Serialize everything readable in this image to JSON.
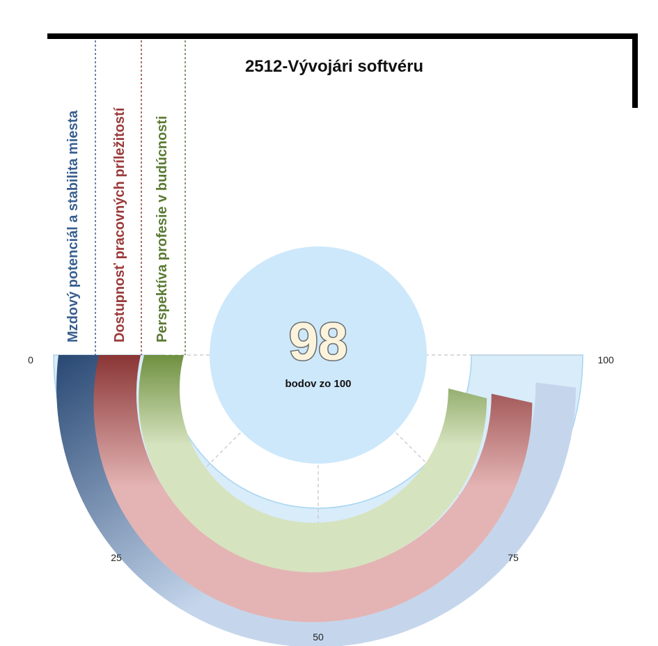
{
  "chart_data": {
    "type": "radial-bar",
    "title": "2512-Vývojári softvéru",
    "score": {
      "value": "98",
      "caption": "bodov zo 100"
    },
    "axis": {
      "min": 0,
      "max": 100,
      "ticks": [
        "0",
        "25",
        "50",
        "75",
        "100"
      ]
    },
    "series": [
      {
        "name": "Mzdový potenciál a stabilita miesta",
        "value": 96,
        "color": "#2b4a75",
        "light_color": "#c5d6ec",
        "label_color": "#3a5f8f"
      },
      {
        "name": "Dostupnosť pracovných príležitostí",
        "value": 93,
        "color": "#8a3535",
        "light_color": "#e4b4b4",
        "label_color": "#9a3a3a"
      },
      {
        "name": "Perspektíva profesie v budúcnosti",
        "value": 92,
        "color": "#6f9040",
        "light_color": "#d6e3bf",
        "label_color": "#5a7a33"
      }
    ],
    "colors": {
      "track": "#d8ecfa",
      "track_edge": "#a7d4f0",
      "center": "#cde8fb",
      "grid": "#cfcfcf",
      "frame": "#000000"
    }
  }
}
